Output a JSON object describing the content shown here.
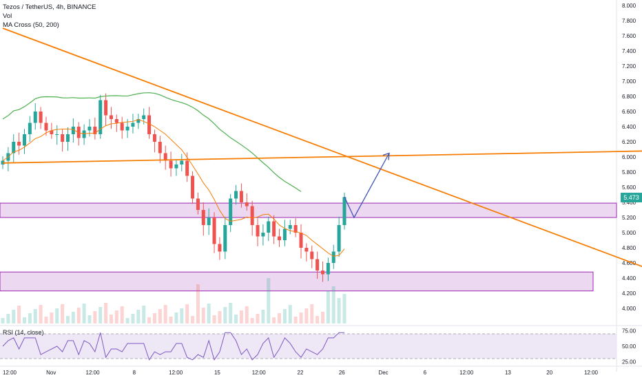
{
  "legend": {
    "symbol": "Tezos / TetherUS, 4h, BINANCE",
    "vol": "Vol",
    "ma": "MA Cross (50, 200)"
  },
  "rsi_label": "RSI (14, close)",
  "last_price": "5.473",
  "colors": {
    "up": "#26a69a",
    "down": "#ef5350",
    "trendline": "#f57c00",
    "ma50": "#f57c00",
    "ma200": "#4caf50",
    "zone_fill": "#e1bee7",
    "zone_border": "#9c27b0",
    "projection": "#3f51b5",
    "rsi_line": "#7e57c2",
    "rsi_band": "#ede7f6"
  },
  "chart_data": {
    "type": "candlestick",
    "y_axis": {
      "ticks": [
        "8.000",
        "7.800",
        "7.600",
        "7.400",
        "7.200",
        "7.000",
        "6.800",
        "6.600",
        "6.400",
        "6.200",
        "6.000",
        "5.800",
        "5.600",
        "5.400",
        "5.200",
        "5.000",
        "4.800",
        "4.600",
        "4.400",
        "4.200",
        "4.000"
      ],
      "range": [
        3.85,
        8.08
      ]
    },
    "x_axis": {
      "ticks": [
        "12:00",
        "Nov",
        "12:00",
        "8",
        "12:00",
        "15",
        "12:00",
        "22",
        "26",
        "Dec",
        "6",
        "12:00",
        "13",
        "20",
        "12:00"
      ]
    },
    "close_path": [
      5.95,
      6.05,
      6.2,
      6.15,
      6.3,
      6.45,
      6.6,
      6.45,
      6.35,
      6.3,
      6.3,
      6.2,
      6.3,
      6.4,
      6.25,
      6.35,
      6.4,
      6.3,
      6.75,
      6.55,
      6.5,
      6.45,
      6.35,
      6.4,
      6.45,
      6.5,
      6.55,
      6.3,
      6.2,
      6.05,
      5.95,
      5.85,
      5.9,
      5.95,
      5.75,
      5.45,
      5.3,
      5.1,
      5.2,
      4.85,
      4.75,
      5.1,
      5.45,
      5.55,
      5.4,
      5.35,
      5.1,
      4.95,
      5.0,
      5.15,
      4.95,
      4.9,
      5.05,
      5.1,
      5.0,
      4.8,
      4.75,
      4.65,
      4.5,
      4.45,
      4.6,
      4.75,
      5.1,
      5.47
    ],
    "zones": [
      {
        "top": 5.39,
        "bottom": 5.2
      },
      {
        "top": 4.48,
        "bottom": 4.23
      }
    ],
    "trendlines": [
      {
        "from": [
          0,
          7.7
        ],
        "to": [
          130,
          4.23
        ]
      },
      {
        "from": [
          0,
          5.92
        ],
        "to": [
          172,
          6.15
        ]
      }
    ],
    "projection": [
      [
        5.473
      ],
      [
        5.2
      ],
      [
        6.05
      ]
    ],
    "rsi": {
      "ticks": [
        "75.00",
        "50.00",
        "25.00"
      ],
      "range": [
        20,
        80
      ],
      "band": [
        30,
        70
      ]
    }
  }
}
